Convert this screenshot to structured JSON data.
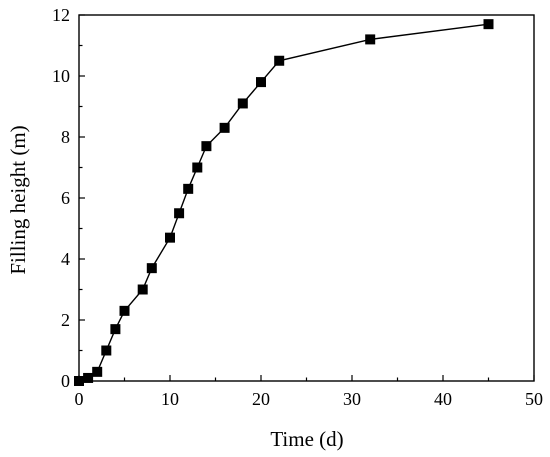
{
  "chart_data": {
    "type": "line",
    "xlabel": "Time (d)",
    "ylabel": "Filling height (m)",
    "xlim": [
      0,
      50
    ],
    "ylim": [
      0,
      12
    ],
    "xticks": [
      0,
      10,
      20,
      30,
      40,
      50
    ],
    "yticks": [
      0,
      2,
      4,
      6,
      8,
      10,
      12
    ],
    "grid": false,
    "marker": "square",
    "line_color": "#000000",
    "series": [
      {
        "x": [
          0,
          1,
          2,
          3,
          4,
          5,
          7,
          8,
          10,
          11,
          12,
          13,
          14,
          16,
          18,
          20,
          22,
          32,
          45
        ],
        "y": [
          0.0,
          0.1,
          0.3,
          1.0,
          1.7,
          2.3,
          3.0,
          3.7,
          4.7,
          5.5,
          6.3,
          7.0,
          7.7,
          8.3,
          9.1,
          9.8,
          10.5,
          11.2,
          11.7
        ]
      }
    ]
  }
}
